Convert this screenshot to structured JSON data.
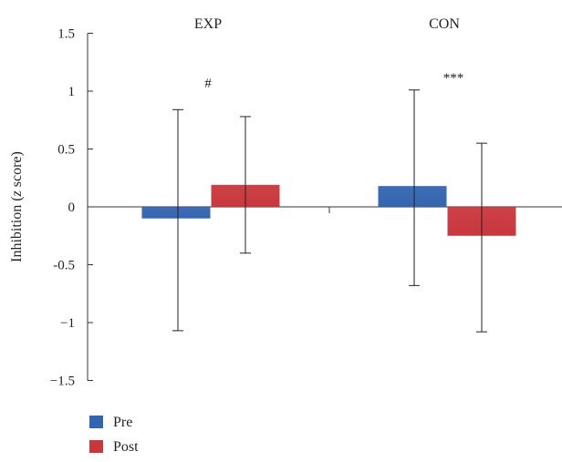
{
  "chart_data": {
    "type": "bar",
    "categories": [
      "EXP",
      "CON"
    ],
    "series": [
      {
        "name": "Pre",
        "values": [
          -0.1,
          0.18
        ],
        "error_low": [
          -1.07,
          -0.68
        ],
        "error_high": [
          0.84,
          1.01
        ],
        "color": "#3465b0"
      },
      {
        "name": "Post",
        "values": [
          0.19,
          -0.25
        ],
        "error_low": [
          -0.4,
          -1.08
        ],
        "error_high": [
          0.78,
          0.55
        ],
        "color": "#c9373d"
      }
    ],
    "annotations": [
      "#",
      "***"
    ],
    "ylabel_parts": [
      "Inhibition (",
      "z",
      " score)"
    ],
    "yticks": [
      1.5,
      1,
      0.5,
      0,
      -0.5,
      -1,
      -1.5
    ],
    "ytick_labels": [
      "1.5",
      "1",
      "0.5",
      "0",
      "-0.5",
      "−1",
      "−1.5"
    ],
    "ylim": [
      -1.5,
      1.5
    ],
    "grid": false,
    "legend_position": "bottom-left"
  }
}
